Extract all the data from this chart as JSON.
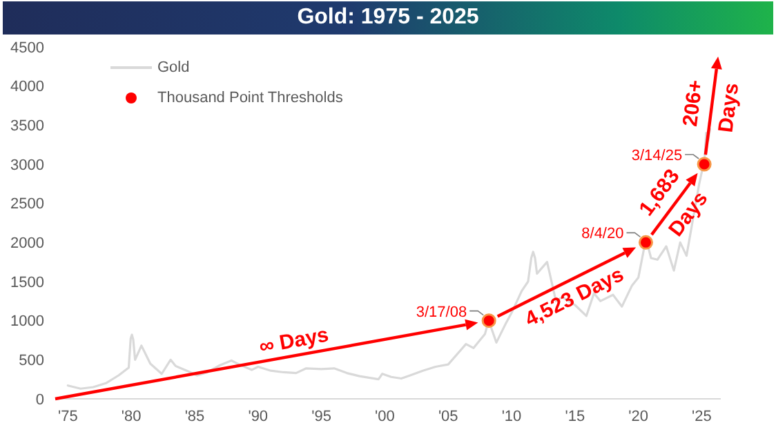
{
  "chart_data": {
    "type": "line",
    "title": "Gold: 1975 - 2025",
    "xlim": [
      1974,
      2026.5
    ],
    "xticks": [
      {
        "value": 1975,
        "label": "'75"
      },
      {
        "value": 1980,
        "label": "'80"
      },
      {
        "value": 1985,
        "label": "'85"
      },
      {
        "value": 1990,
        "label": "'90"
      },
      {
        "value": 1995,
        "label": "'95"
      },
      {
        "value": 2000,
        "label": "'00"
      },
      {
        "value": 2005,
        "label": "'05"
      },
      {
        "value": 2010,
        "label": "'10"
      },
      {
        "value": 2015,
        "label": "'15"
      },
      {
        "value": 2020,
        "label": "'20"
      },
      {
        "value": 2025,
        "label": "'25"
      }
    ],
    "ylim": [
      0,
      4500
    ],
    "yticks": [
      0,
      500,
      1000,
      1500,
      2000,
      2500,
      3000,
      3500,
      4000,
      4500
    ],
    "legend": "top left",
    "series": [
      {
        "name": "Gold",
        "color": "#d9d9d9",
        "marker": "none",
        "x": [
          1975,
          1976,
          1977,
          1978,
          1979,
          1979.8,
          1979.95,
          1980.05,
          1980.15,
          1980.3,
          1980.8,
          1981.5,
          1982.4,
          1983.1,
          1983.5,
          1984.5,
          1985.2,
          1986,
          1987,
          1987.9,
          1988.5,
          1989.5,
          1990,
          1991,
          1992,
          1993,
          1993.8,
          1995,
          1996,
          1997,
          1998,
          1999.5,
          1999.8,
          2000.5,
          2001.3,
          2002,
          2003,
          2004,
          2005,
          2006.4,
          2007,
          2007.9,
          2008.2,
          2008.8,
          2009.5,
          2010,
          2010.8,
          2011.3,
          2011.55,
          2011.7,
          2011.85,
          2012,
          2012.8,
          2013.5,
          2014,
          2015,
          2015.9,
          2016.5,
          2017,
          2018,
          2018.7,
          2019.5,
          2020,
          2020.6,
          2021,
          2021.5,
          2022.2,
          2022.8,
          2023.3,
          2023.8,
          2024.2,
          2024.8,
          2025,
          2025.2,
          2025.35,
          2025.5,
          2025.65
        ],
        "values": [
          170,
          130,
          150,
          200,
          300,
          400,
          770,
          820,
          760,
          500,
          680,
          450,
          320,
          500,
          420,
          350,
          300,
          340,
          430,
          490,
          440,
          370,
          410,
          360,
          340,
          330,
          390,
          380,
          390,
          330,
          290,
          250,
          320,
          280,
          260,
          300,
          360,
          410,
          440,
          700,
          650,
          830,
          1000,
          720,
          950,
          1100,
          1380,
          1500,
          1800,
          1880,
          1800,
          1600,
          1750,
          1250,
          1300,
          1200,
          1060,
          1350,
          1250,
          1330,
          1180,
          1450,
          1550,
          2050,
          1800,
          1780,
          1950,
          1640,
          2000,
          1830,
          2200,
          2750,
          2900,
          3000,
          3400,
          3300,
          3450
        ]
      },
      {
        "name": "Thousand Point Thresholds",
        "type": "scatter",
        "color": "#ff0000",
        "marker": "circle",
        "x": [
          2008.21,
          2020.59,
          2025.2
        ],
        "values": [
          1000,
          2000,
          3000
        ]
      }
    ],
    "annotations": [
      {
        "text": "3/17/08",
        "x": 2008.21,
        "y": 1000
      },
      {
        "text": "8/4/20",
        "x": 2020.59,
        "y": 2000
      },
      {
        "text": "3/14/25",
        "x": 2025.2,
        "y": 3000
      },
      "∞ Days",
      "4,523 Days",
      "1,683 Days",
      "206+ Days"
    ]
  }
}
